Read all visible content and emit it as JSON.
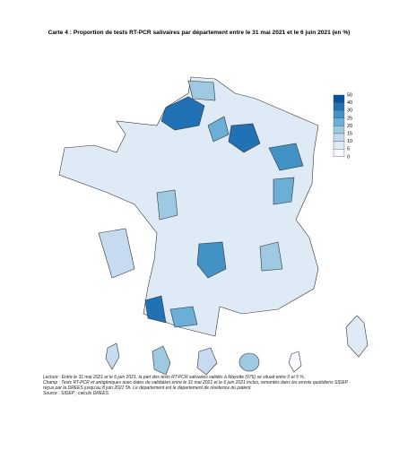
{
  "title": "Carte 4 : Proportion de tests RT-PCR salivaires par département entre le 31 mai 2021 et le 6 juin 2021 (en %)",
  "legend": {
    "breaks": [
      50,
      40,
      30,
      25,
      20,
      15,
      10,
      5,
      0
    ],
    "colors": [
      "#08519c",
      "#2171b5",
      "#4292c6",
      "#6baed6",
      "#9ecae1",
      "#c6dbef",
      "#deebf7",
      "#f7fbff"
    ]
  },
  "notes": {
    "lecture": "Lecture : Entre le 31 mai 2021 et le 6 juin 2021, la part des tests RT-PCR salivaires validés à Mayotte (976) se situait entre 0 et 5 %.",
    "champ": "Champ : Tests RT-PCR et antigéniques avec dates de validation entre le 31 mai 2021 et le 6 juin 2021 inclus, remontés dans les envois quotidiens SIDEP reçus par la DREES jusqu'au 8 juin 2021 5h. Le département est le département de résidence du patient.",
    "source": "Source : SIDEP ; calculs DREES."
  }
}
